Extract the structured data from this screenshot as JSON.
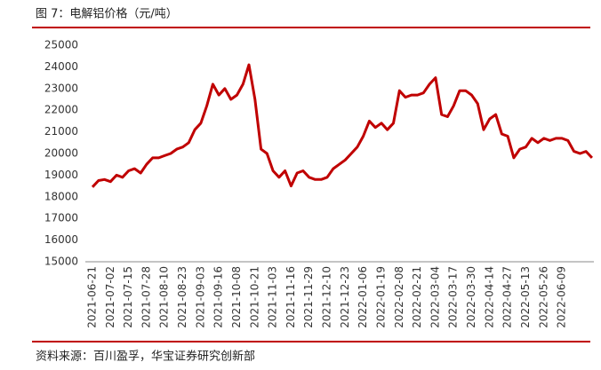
{
  "chart_data": {
    "type": "line",
    "title": "图 7：电解铝价格（元/吨）",
    "source": "资料来源：百川盈孚，华宝证券研究创新部",
    "categories": [
      "2021-06-21",
      null,
      null,
      "2021-07-02",
      null,
      null,
      "2021-07-15",
      null,
      null,
      "2021-07-28",
      null,
      null,
      "2021-08-10",
      null,
      null,
      "2021-08-23",
      null,
      null,
      "2021-09-03",
      null,
      null,
      "2021-09-16",
      null,
      null,
      "2021-10-08",
      null,
      null,
      "2021-10-21",
      null,
      null,
      "2021-11-03",
      null,
      null,
      "2021-11-16",
      null,
      null,
      "2021-11-29",
      null,
      null,
      "2021-12-10",
      null,
      null,
      "2021-12-23",
      null,
      null,
      "2022-01-06",
      null,
      null,
      "2022-01-19",
      null,
      null,
      "2022-02-08",
      null,
      null,
      "2022-02-21",
      null,
      null,
      "2022-03-04",
      null,
      null,
      "2022-03-17",
      null,
      null,
      "2022-03-30",
      null,
      null,
      "2022-04-14",
      null,
      null,
      "2022-04-27",
      null,
      null,
      "2022-05-13",
      null,
      null,
      "2022-05-26",
      null,
      null,
      "2022-06-09",
      null,
      null,
      null,
      null,
      null
    ],
    "series": [
      {
        "name": "电解铝价格",
        "color": "#c00000",
        "values": [
          18450,
          18750,
          18800,
          18700,
          19000,
          18900,
          19200,
          19300,
          19100,
          19500,
          19800,
          19800,
          19900,
          20000,
          20200,
          20300,
          20500,
          21100,
          21400,
          22200,
          23200,
          22700,
          23000,
          22500,
          22700,
          23200,
          24100,
          22500,
          20200,
          20000,
          19200,
          18900,
          19200,
          18500,
          19100,
          19200,
          18900,
          18800,
          18800,
          18900,
          19300,
          19500,
          19700,
          20000,
          20300,
          20800,
          21500,
          21200,
          21400,
          21100,
          21400,
          22900,
          22600,
          22700,
          22700,
          22800,
          23200,
          23500,
          21800,
          21700,
          22200,
          22900,
          22900,
          22700,
          22300,
          21100,
          21600,
          21800,
          20900,
          20800,
          19800,
          20200,
          20300,
          20700,
          20500,
          20700,
          20600,
          20700,
          20700,
          20600,
          20100,
          20000,
          20100,
          19800
        ]
      }
    ],
    "ylim": [
      15000,
      25000
    ],
    "yticks": [
      15000,
      16000,
      17000,
      18000,
      19000,
      20000,
      21000,
      22000,
      23000,
      24000,
      25000
    ],
    "grid": false
  }
}
